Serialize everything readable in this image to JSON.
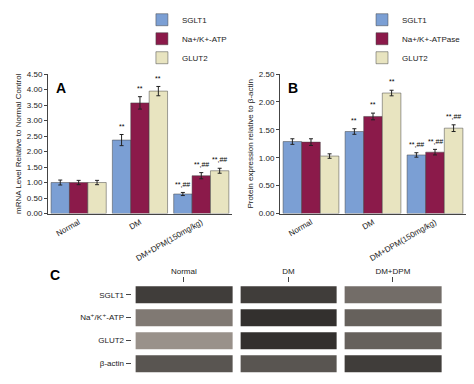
{
  "chart_data": [
    {
      "type": "bar",
      "title": "A",
      "ylabel": "mRNA Level Relative to Normal Control",
      "categories": [
        "Normal",
        "DM",
        "DM+DPM(150mg/kg)"
      ],
      "series": [
        {
          "name": "SGLT1",
          "color": "#7b9fd4",
          "values": [
            1.0,
            2.37,
            0.63
          ],
          "errors": [
            0.08,
            0.18,
            0.05
          ]
        },
        {
          "name": "Na+/K+-ATP",
          "color": "#8b1a4a",
          "values": [
            1.0,
            3.57,
            1.22
          ],
          "errors": [
            0.07,
            0.2,
            0.1
          ]
        },
        {
          "name": "GLUT2",
          "color": "#e8e4c0",
          "values": [
            1.0,
            3.95,
            1.38
          ],
          "errors": [
            0.07,
            0.15,
            0.08
          ]
        }
      ],
      "ylim": [
        0,
        4.5
      ],
      "yticks": [
        {
          "value": 0,
          "label": "0.00"
        },
        {
          "value": 0.5,
          "label": "0.50"
        },
        {
          "value": 1,
          "label": "1.00"
        },
        {
          "value": 1.5,
          "label": "1.50"
        },
        {
          "value": 2,
          "label": "2.00"
        },
        {
          "value": 2.5,
          "label": "2.50"
        },
        {
          "value": 3,
          "label": "3.00"
        },
        {
          "value": 3.5,
          "label": "3.50"
        },
        {
          "value": 4,
          "label": "4.00"
        },
        {
          "value": 4.5,
          "label": "4.50"
        }
      ],
      "grid": false,
      "legend": "upper right",
      "annotations": [
        {
          "category": "DM",
          "series": "SGLT1",
          "text": "**"
        },
        {
          "category": "DM",
          "series": "Na+/K+-ATP",
          "text": "**"
        },
        {
          "category": "DM",
          "series": "GLUT2",
          "text": "**"
        },
        {
          "category": "DM+DPM(150mg/kg)",
          "series": "SGLT1",
          "text": "**,##"
        },
        {
          "category": "DM+DPM(150mg/kg)",
          "series": "Na+/K+-ATP",
          "text": "**,##"
        },
        {
          "category": "DM+DPM(150mg/kg)",
          "series": "GLUT2",
          "text": "**,##"
        }
      ]
    },
    {
      "type": "bar",
      "title": "B",
      "ylabel": "Protein expression relative to β-actin",
      "categories": [
        "Normal",
        "DM",
        "DM+DPM(150mg/kg)"
      ],
      "series": [
        {
          "name": "SGLT1",
          "color": "#7b9fd4",
          "values": [
            1.29,
            1.47,
            1.05
          ],
          "errors": [
            0.05,
            0.05,
            0.04
          ]
        },
        {
          "name": "Na+/K+-ATPase",
          "color": "#8b1a4a",
          "values": [
            1.28,
            1.74,
            1.1
          ],
          "errors": [
            0.06,
            0.06,
            0.05
          ]
        },
        {
          "name": "GLUT2",
          "color": "#e8e4c0",
          "values": [
            1.03,
            2.16,
            1.53
          ],
          "errors": [
            0.04,
            0.05,
            0.06
          ]
        }
      ],
      "ylim": [
        0,
        2.5
      ],
      "yticks": [
        {
          "value": 0,
          "label": "0.00"
        },
        {
          "value": 0.5,
          "label": "0.50"
        },
        {
          "value": 1,
          "label": "1.00"
        },
        {
          "value": 1.5,
          "label": "1.50"
        },
        {
          "value": 2,
          "label": "2.00"
        },
        {
          "value": 2.5,
          "label": "2.50"
        }
      ],
      "grid": false,
      "legend": "upper right",
      "annotations": [
        {
          "category": "DM",
          "series": "SGLT1",
          "text": "**"
        },
        {
          "category": "DM",
          "series": "Na+/K+-ATPase",
          "text": "**"
        },
        {
          "category": "DM",
          "series": "GLUT2",
          "text": "**"
        },
        {
          "category": "DM+DPM(150mg/kg)",
          "series": "SGLT1",
          "text": "**,##"
        },
        {
          "category": "DM+DPM(150mg/kg)",
          "series": "Na+/K+-ATPase",
          "text": "**,##"
        },
        {
          "category": "DM+DPM(150mg/kg)",
          "series": "GLUT2",
          "text": "**,##"
        }
      ]
    },
    {
      "type": "heatmap",
      "title": "C",
      "x": [
        "Normal",
        "DM",
        "DM+DPM"
      ],
      "y": [
        "SGLT1",
        "Na⁺/K⁺-ATP",
        "GLUT2",
        "β-actin"
      ],
      "cells": [
        [
          0.25,
          0.25,
          0.45
        ],
        [
          0.5,
          0.2,
          0.4
        ],
        [
          0.6,
          0.2,
          0.4
        ],
        [
          0.35,
          0.35,
          0.25
        ]
      ],
      "grid": false
    }
  ]
}
